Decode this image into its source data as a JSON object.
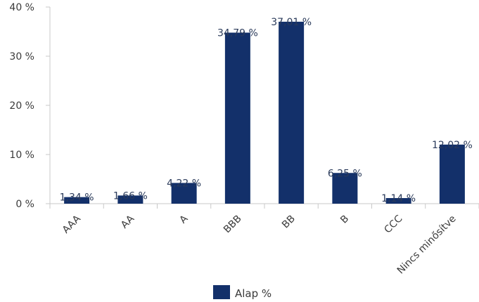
{
  "chart_data": {
    "type": "bar",
    "categories": [
      "AAA",
      "AA",
      "A",
      "BBB",
      "BB",
      "B",
      "CCC",
      "Nincs minősítve"
    ],
    "series": [
      {
        "name": "Alap %",
        "values": [
          1.34,
          1.66,
          4.22,
          34.79,
          37.01,
          6.25,
          1.14,
          12.02
        ],
        "labels": [
          "1,34 %",
          "1,66 %",
          "4,22 %",
          "34,79 %",
          "37,01 %",
          "6,25 %",
          "1,14 %",
          "12,02 %"
        ]
      }
    ],
    "ylim": [
      0,
      40
    ],
    "yticks": [
      0,
      10,
      20,
      30,
      40
    ],
    "ytick_labels": [
      "0 %",
      "10 %",
      "20 %",
      "30 %",
      "40 %"
    ],
    "legend_placement": "bottom",
    "grid": false,
    "bar_color": "#13306a"
  }
}
